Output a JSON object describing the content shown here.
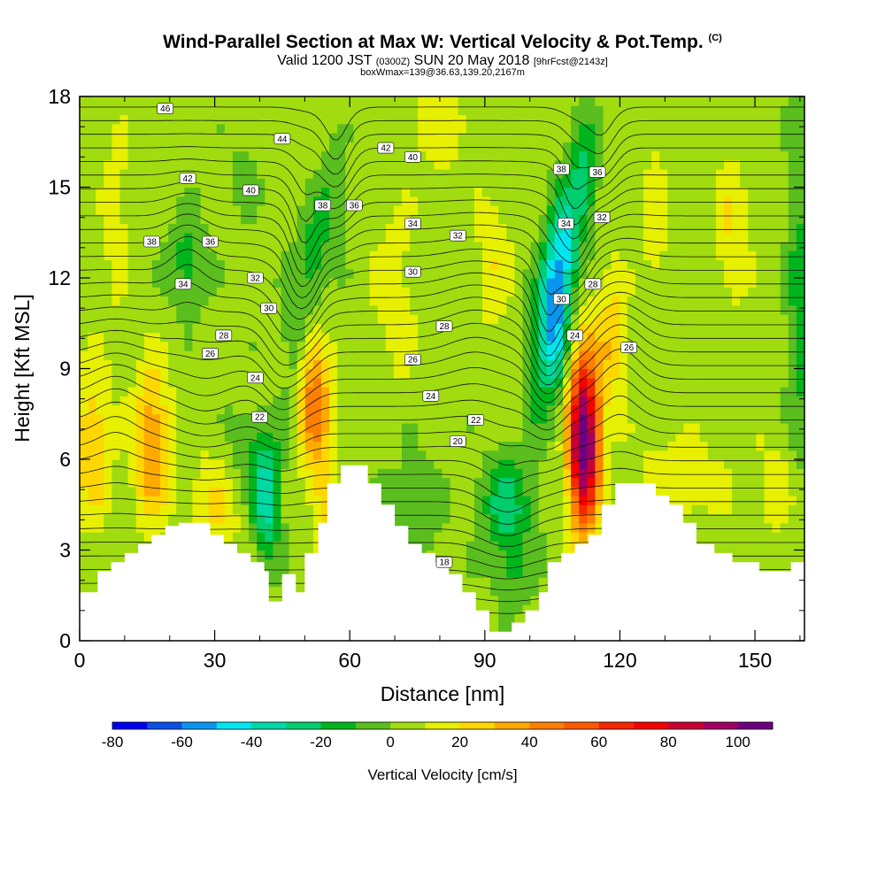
{
  "header": {
    "title_main": "Wind-Parallel Section at Max W: Vertical Velocity & Pot.Temp.",
    "title_copyright": "(C)",
    "valid_prefix": "Valid 1200 JST",
    "valid_utc": "(0300Z)",
    "valid_date": "SUN 20 May 2018",
    "forecast_info": "[9hrFcst@2143z]",
    "box_info": "boxWmax=139@36.63,139.20,2167m"
  },
  "chart_data": {
    "type": "heatmap",
    "title": "Wind-Parallel Section at Max W: Vertical Velocity & Pot.Temp.",
    "xlabel": "Distance [nm]",
    "ylabel": "Height [Kft MSL]",
    "xlim": [
      0,
      161
    ],
    "ylim": [
      0,
      18
    ],
    "x_ticks": [
      0,
      30,
      60,
      90,
      120,
      150
    ],
    "y_ticks": [
      0,
      3,
      6,
      9,
      12,
      15,
      18
    ],
    "grid": false,
    "colorbar": {
      "title": "Vertical Velocity [cm/s]",
      "levels": [
        -80,
        -70,
        -60,
        -50,
        -40,
        -30,
        -20,
        -10,
        0,
        10,
        20,
        30,
        40,
        50,
        60,
        70,
        80,
        90,
        100,
        110
      ],
      "tick_labels": [
        -80,
        -60,
        -40,
        -20,
        0,
        20,
        40,
        60,
        80,
        100
      ],
      "colors": [
        "#0000f0",
        "#0a50e6",
        "#0a96f0",
        "#00e6f0",
        "#00d9a6",
        "#00cd6e",
        "#00b41e",
        "#5abe1e",
        "#a0dc0f",
        "#e6f000",
        "#ffd700",
        "#ffaa00",
        "#ff8000",
        "#ff5a00",
        "#f52800",
        "#f50000",
        "#c80032",
        "#a00064",
        "#6e0082"
      ]
    },
    "terrain_kft": [
      [
        0,
        1.6
      ],
      [
        4,
        1.6
      ],
      [
        4,
        2.3
      ],
      [
        7,
        2.3
      ],
      [
        7,
        2.6
      ],
      [
        10,
        2.6
      ],
      [
        10,
        2.9
      ],
      [
        13,
        2.9
      ],
      [
        13,
        3.2
      ],
      [
        16,
        3.2
      ],
      [
        16,
        3.5
      ],
      [
        19,
        3.5
      ],
      [
        19,
        3.8
      ],
      [
        22,
        3.8
      ],
      [
        22,
        3.9
      ],
      [
        29,
        3.9
      ],
      [
        29,
        3.5
      ],
      [
        32,
        3.5
      ],
      [
        32,
        3.2
      ],
      [
        35,
        3.2
      ],
      [
        35,
        2.9
      ],
      [
        38,
        2.9
      ],
      [
        38,
        2.6
      ],
      [
        41,
        2.6
      ],
      [
        41,
        2.3
      ],
      [
        42,
        2.3
      ],
      [
        42,
        1.3
      ],
      [
        45,
        1.3
      ],
      [
        45,
        2.2
      ],
      [
        48,
        2.2
      ],
      [
        48,
        1.6
      ],
      [
        50,
        1.6
      ],
      [
        50,
        2.9
      ],
      [
        53,
        2.9
      ],
      [
        53,
        3.9
      ],
      [
        55,
        3.9
      ],
      [
        55,
        5.2
      ],
      [
        58,
        5.2
      ],
      [
        58,
        5.8
      ],
      [
        64,
        5.8
      ],
      [
        64,
        5.2
      ],
      [
        67,
        5.2
      ],
      [
        67,
        4.5
      ],
      [
        70,
        4.5
      ],
      [
        70,
        3.8
      ],
      [
        73,
        3.8
      ],
      [
        73,
        3.2
      ],
      [
        76,
        3.2
      ],
      [
        76,
        2.9
      ],
      [
        79,
        2.9
      ],
      [
        79,
        2.6
      ],
      [
        82,
        2.6
      ],
      [
        82,
        2.2
      ],
      [
        85,
        2.2
      ],
      [
        85,
        1.6
      ],
      [
        88,
        1.6
      ],
      [
        88,
        1.0
      ],
      [
        91,
        1.0
      ],
      [
        91,
        0.3
      ],
      [
        96,
        0.3
      ],
      [
        96,
        0.6
      ],
      [
        99,
        0.6
      ],
      [
        99,
        1.0
      ],
      [
        102,
        1.0
      ],
      [
        102,
        1.6
      ],
      [
        104,
        1.6
      ],
      [
        104,
        2.6
      ],
      [
        107,
        2.6
      ],
      [
        107,
        2.9
      ],
      [
        110,
        2.9
      ],
      [
        110,
        3.2
      ],
      [
        113,
        3.2
      ],
      [
        113,
        3.5
      ],
      [
        116,
        3.5
      ],
      [
        116,
        4.5
      ],
      [
        119,
        4.5
      ],
      [
        119,
        5.2
      ],
      [
        128,
        5.2
      ],
      [
        128,
        4.8
      ],
      [
        131,
        4.8
      ],
      [
        131,
        4.5
      ],
      [
        134,
        4.5
      ],
      [
        134,
        3.9
      ],
      [
        137,
        3.9
      ],
      [
        137,
        3.2
      ],
      [
        141,
        3.2
      ],
      [
        141,
        2.9
      ],
      [
        145,
        2.9
      ],
      [
        145,
        2.6
      ],
      [
        151,
        2.6
      ],
      [
        151,
        2.3
      ],
      [
        158,
        2.3
      ],
      [
        158,
        2.6
      ],
      [
        161,
        2.6
      ]
    ],
    "isentrope_labels": [
      {
        "value": "46",
        "x": 19,
        "y": 17.6
      },
      {
        "value": "44",
        "x": 45,
        "y": 16.6
      },
      {
        "value": "42",
        "x": 68,
        "y": 16.3
      },
      {
        "value": "40",
        "x": 74,
        "y": 16.0
      },
      {
        "value": "42",
        "x": 24,
        "y": 15.3
      },
      {
        "value": "40",
        "x": 38,
        "y": 14.9
      },
      {
        "value": "38",
        "x": 54,
        "y": 14.4
      },
      {
        "value": "36",
        "x": 61,
        "y": 14.4
      },
      {
        "value": "34",
        "x": 74,
        "y": 13.8
      },
      {
        "value": "32",
        "x": 84,
        "y": 13.4
      },
      {
        "value": "38",
        "x": 107,
        "y": 15.6
      },
      {
        "value": "36",
        "x": 115,
        "y": 15.5
      },
      {
        "value": "38",
        "x": 16,
        "y": 13.2
      },
      {
        "value": "36",
        "x": 29,
        "y": 13.2
      },
      {
        "value": "34",
        "x": 108,
        "y": 13.8
      },
      {
        "value": "32",
        "x": 116,
        "y": 14.0
      },
      {
        "value": "34",
        "x": 23,
        "y": 11.8
      },
      {
        "value": "32",
        "x": 39,
        "y": 12.0
      },
      {
        "value": "30",
        "x": 74,
        "y": 12.2
      },
      {
        "value": "30",
        "x": 42,
        "y": 11.0
      },
      {
        "value": "30",
        "x": 107,
        "y": 11.3
      },
      {
        "value": "28",
        "x": 114,
        "y": 11.8
      },
      {
        "value": "28",
        "x": 32,
        "y": 10.1
      },
      {
        "value": "28",
        "x": 81,
        "y": 10.4
      },
      {
        "value": "24",
        "x": 110,
        "y": 10.1
      },
      {
        "value": "26",
        "x": 29,
        "y": 9.5
      },
      {
        "value": "26",
        "x": 74,
        "y": 9.3
      },
      {
        "value": "26",
        "x": 122,
        "y": 9.7
      },
      {
        "value": "24",
        "x": 39,
        "y": 8.7
      },
      {
        "value": "24",
        "x": 78,
        "y": 8.1
      },
      {
        "value": "22",
        "x": 40,
        "y": 7.4
      },
      {
        "value": "22",
        "x": 88,
        "y": 7.3
      },
      {
        "value": "20",
        "x": 84,
        "y": 6.6
      },
      {
        "value": "18",
        "x": 81,
        "y": 2.6
      }
    ]
  }
}
